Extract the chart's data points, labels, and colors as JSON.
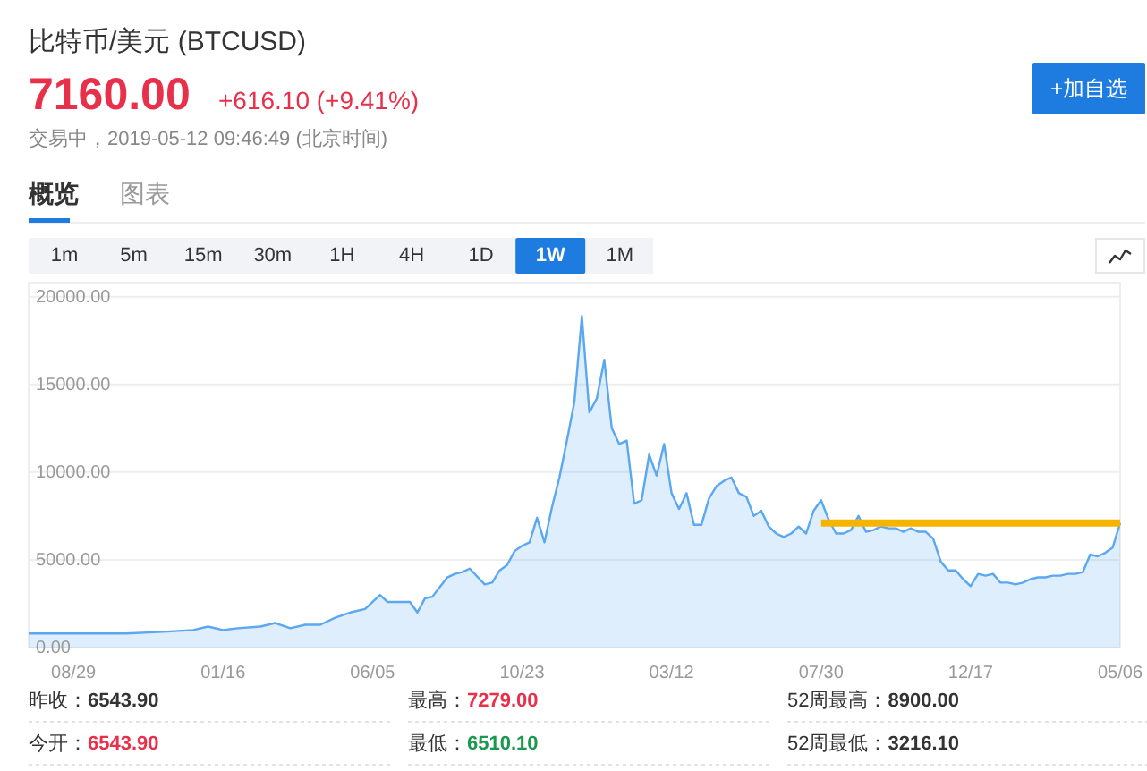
{
  "chart_data": {
    "type": "area",
    "title": "比特币/美元 (BTCUSD)",
    "annotations": [
      "7160.00",
      "+616.10 (+9.41%)",
      "交易中，2019-05-12 09:46:49 (北京时间)",
      "+加自选",
      "概览",
      "图表",
      "1m",
      "5m",
      "15m",
      "30m",
      "1H",
      "4H",
      "1D",
      "1W",
      "1M",
      "昨收：**6543.90**",
      "最高：**7279.00**",
      "52周最高：**8900.00**",
      "今开：**6543.90**",
      "最低：**6510.10**",
      "52周最低：**3216.10**"
    ],
    "xlim": [
      "2016-07-18",
      "2019-05-06"
    ],
    "xticks": [
      {
        "value": "2016-08-29",
        "label": "08/29"
      },
      {
        "value": "2017-01-16",
        "label": "01/16"
      },
      {
        "value": "2017-06-05",
        "label": "06/05"
      },
      {
        "value": "2017-10-23",
        "label": "10/23"
      },
      {
        "value": "2018-03-12",
        "label": "03/12"
      },
      {
        "value": "2018-07-30",
        "label": "07/30"
      },
      {
        "value": "2018-12-17",
        "label": "12/17"
      },
      {
        "value": "2019-05-06",
        "label": "05/06"
      }
    ],
    "ylim": [
      0,
      20800
    ],
    "yticks": [
      {
        "value": 0,
        "label": "0.00"
      },
      {
        "value": 5000,
        "label": "5000.00"
      },
      {
        "value": 10000,
        "label": "10000.00"
      },
      {
        "value": 15000,
        "label": "15000.00"
      },
      {
        "value": 20000,
        "label": "20000.00"
      }
    ],
    "grid": "y",
    "series": [
      {
        "color": "#5ba8f0",
        "x": [
          "2016-07-18",
          "2016-08-29",
          "2016-10-17",
          "2016-11-21",
          "2016-12-19",
          "2017-01-02",
          "2017-01-16",
          "2017-01-30",
          "2017-02-20",
          "2017-03-06",
          "2017-03-20",
          "2017-04-03",
          "2017-04-17",
          "2017-05-01",
          "2017-05-15",
          "2017-05-29",
          "2017-06-12",
          "2017-06-19",
          "2017-07-10",
          "2017-07-17",
          "2017-07-24",
          "2017-07-31",
          "2017-08-14",
          "2017-08-21",
          "2017-08-28",
          "2017-09-04",
          "2017-09-18",
          "2017-09-25",
          "2017-10-02",
          "2017-10-09",
          "2017-10-16",
          "2017-10-23",
          "2017-10-30",
          "2017-11-06",
          "2017-11-13",
          "2017-11-20",
          "2017-11-27",
          "2017-12-04",
          "2017-12-11",
          "2017-12-18",
          "2017-12-25",
          "2018-01-01",
          "2018-01-08",
          "2018-01-15",
          "2018-01-22",
          "2018-01-29",
          "2018-02-05",
          "2018-02-12",
          "2018-02-19",
          "2018-02-26",
          "2018-03-05",
          "2018-03-12",
          "2018-03-19",
          "2018-03-26",
          "2018-04-02",
          "2018-04-09",
          "2018-04-16",
          "2018-04-23",
          "2018-04-30",
          "2018-05-07",
          "2018-05-14",
          "2018-05-21",
          "2018-05-28",
          "2018-06-04",
          "2018-06-11",
          "2018-06-18",
          "2018-06-25",
          "2018-07-02",
          "2018-07-09",
          "2018-07-16",
          "2018-07-23",
          "2018-07-30",
          "2018-08-06",
          "2018-08-13",
          "2018-08-20",
          "2018-08-27",
          "2018-09-03",
          "2018-09-10",
          "2018-09-17",
          "2018-09-24",
          "2018-10-01",
          "2018-10-08",
          "2018-10-15",
          "2018-10-22",
          "2018-10-29",
          "2018-11-05",
          "2018-11-12",
          "2018-11-19",
          "2018-11-26",
          "2018-12-03",
          "2018-12-10",
          "2018-12-17",
          "2018-12-24",
          "2018-12-31",
          "2019-01-07",
          "2019-01-14",
          "2019-01-21",
          "2019-01-28",
          "2019-02-04",
          "2019-02-11",
          "2019-02-18",
          "2019-02-25",
          "2019-03-04",
          "2019-03-11",
          "2019-03-18",
          "2019-03-25",
          "2019-04-01",
          "2019-04-08",
          "2019-04-15",
          "2019-04-22",
          "2019-04-29",
          "2019-05-06"
        ],
        "values": [
          800,
          800,
          800,
          900,
          1000,
          1200,
          1000,
          1100,
          1200,
          1400,
          1100,
          1300,
          1300,
          1700,
          2000,
          2200,
          3000,
          2600,
          2600,
          2000,
          2800,
          2900,
          4000,
          4200,
          4300,
          4500,
          3600,
          3700,
          4400,
          4700,
          5500,
          5800,
          6000,
          7400,
          6000,
          8000,
          9700,
          11800,
          14000,
          18900,
          13400,
          14200,
          16400,
          12500,
          11600,
          11800,
          8200,
          8400,
          11000,
          9800,
          11600,
          8800,
          7900,
          8800,
          7000,
          7000,
          8500,
          9200,
          9500,
          9700,
          8800,
          8600,
          7500,
          7800,
          6900,
          6500,
          6300,
          6500,
          6900,
          6500,
          7800,
          8400,
          7300,
          6500,
          6500,
          6700,
          7500,
          6600,
          6700,
          6900,
          6800,
          6800,
          6600,
          6800,
          6600,
          6600,
          6200,
          4900,
          4400,
          4400,
          3900,
          3500,
          4200,
          4100,
          4200,
          3700,
          3700,
          3600,
          3700,
          3900,
          4000,
          4000,
          4100,
          4100,
          4200,
          4200,
          4300,
          5300,
          5200,
          5400,
          5700,
          7100
        ]
      },
      {
        "type": "line",
        "color": "#f5b400",
        "x": [
          "2018-07-30",
          "2019-05-06"
        ],
        "values": [
          7100,
          7100
        ]
      }
    ]
  }
}
